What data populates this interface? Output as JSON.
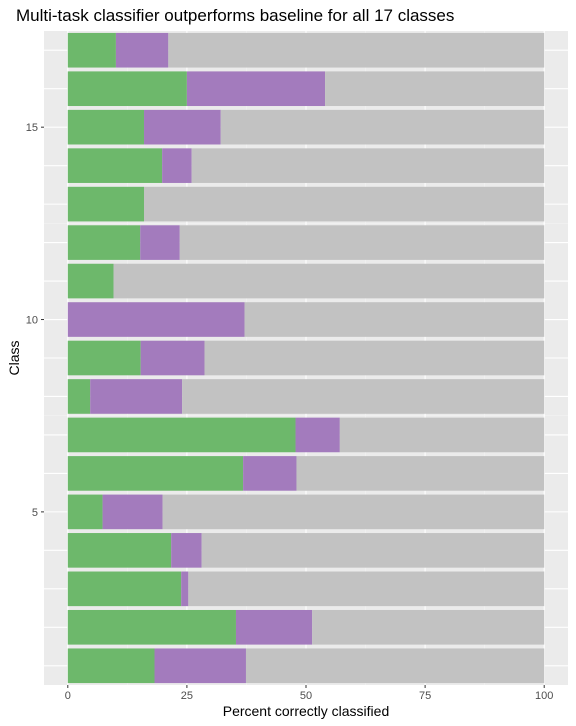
{
  "chart_data": {
    "type": "bar",
    "orientation": "horizontal",
    "stacked": true,
    "title": "Multi-task classifier outperforms baseline for all 17 classes",
    "xlabel": "Percent correctly classified",
    "ylabel": "Class",
    "xlim": [
      0,
      100
    ],
    "ylim": [
      0.5,
      17.5
    ],
    "x_ticks": [
      0,
      25,
      50,
      75,
      100
    ],
    "y_ticks": [
      5,
      10,
      15
    ],
    "grid": true,
    "legend": "none",
    "categories": [
      1,
      2,
      3,
      4,
      5,
      6,
      7,
      8,
      9,
      10,
      11,
      12,
      13,
      14,
      15,
      16,
      17
    ],
    "series": [
      {
        "color": "#6db86b",
        "values": [
          18.2,
          35.3,
          23.8,
          21.7,
          7.3,
          36.8,
          47.8,
          4.7,
          15.3,
          0,
          9.6,
          15.2,
          16.0,
          19.8,
          16.0,
          25.0,
          10.1
        ]
      },
      {
        "color": "#a37bbd",
        "values": [
          19.2,
          16.0,
          1.5,
          6.4,
          12.6,
          11.2,
          9.3,
          19.3,
          13.4,
          37.1,
          0,
          8.3,
          0,
          6.2,
          16.1,
          29.0,
          11.0
        ]
      },
      {
        "color": "#c2c2c2",
        "values": [
          62.6,
          48.7,
          74.7,
          71.9,
          80.1,
          52.0,
          42.9,
          76.0,
          71.3,
          62.9,
          90.4,
          76.5,
          84.0,
          74.0,
          67.9,
          46.0,
          78.9
        ]
      }
    ]
  },
  "colors": {
    "panel": "#ebebeb",
    "grid_major": "#ffffff",
    "grid_minor": "#f4f4f4"
  }
}
